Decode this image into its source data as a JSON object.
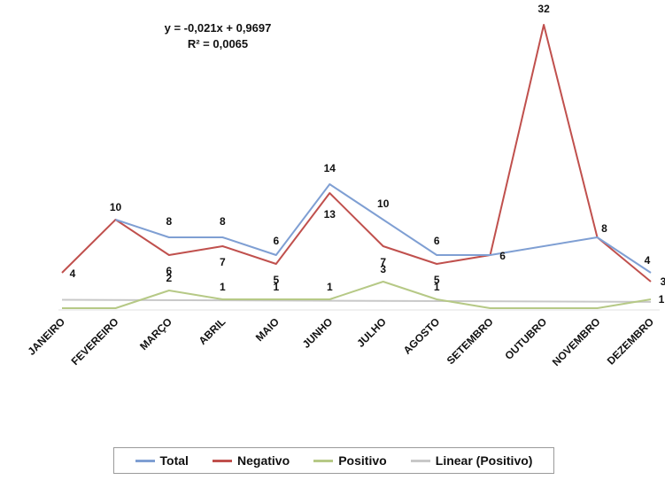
{
  "chart_data": {
    "type": "line",
    "categories": [
      "JANEIRO",
      "FEVEREIRO",
      "MARÇO",
      "ABRIL",
      "MAIO",
      "JUNHO",
      "JULHO",
      "AGOSTO",
      "SETEMBRO",
      "OUTUBRO",
      "NOVEMBRO",
      "DEZEMBRO"
    ],
    "series": [
      {
        "name": "Total",
        "color": "#7f9fd3",
        "values": [
          null,
          10,
          8,
          8,
          6,
          14,
          10,
          6,
          6,
          null,
          8,
          4
        ],
        "labels": [
          "",
          "10",
          "8",
          "8",
          "6",
          "14",
          "10",
          "6",
          "",
          "",
          "8",
          "4"
        ]
      },
      {
        "name": "Negativo",
        "color": "#c0504d",
        "values": [
          4,
          10,
          6,
          7,
          5,
          13,
          7,
          5,
          6,
          32,
          8,
          3
        ],
        "labels": [
          "4",
          "",
          "6",
          "7",
          "5",
          "13",
          "7",
          "5",
          "6",
          "32",
          "",
          "3"
        ]
      },
      {
        "name": "Positivo",
        "color": "#b6c986",
        "values": [
          0,
          0,
          2,
          1,
          1,
          1,
          3,
          1,
          0,
          0,
          0,
          1
        ],
        "labels": [
          "",
          "",
          "2",
          "1",
          "1",
          "1",
          "3",
          "1",
          "",
          "",
          "",
          "1"
        ]
      },
      {
        "name": "Linear (Positivo)",
        "color": "#c8c8c8",
        "trend": {
          "slope": -0.021,
          "intercept": 0.9697
        }
      }
    ],
    "trendline_equation": "y = -0,021x + 0,9697",
    "trendline_r2": "R² = 0,0065",
    "ylim": [
      0,
      32
    ],
    "grid": false,
    "legend": "bottom"
  }
}
